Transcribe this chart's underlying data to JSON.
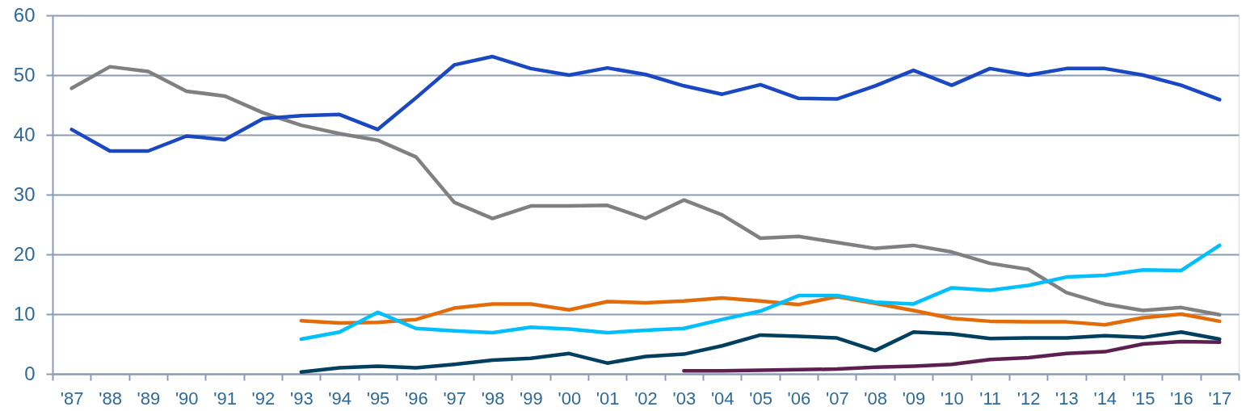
{
  "chart_data": {
    "type": "line",
    "categories": [
      "'87",
      "'88",
      "'89",
      "'90",
      "'91",
      "'92",
      "'93",
      "'94",
      "'95",
      "'96",
      "'97",
      "'98",
      "'99",
      "'00",
      "'01",
      "'02",
      "'03",
      "'04",
      "'05",
      "'06",
      "'07",
      "'08",
      "'09",
      "'10",
      "'11",
      "'12",
      "'13",
      "'14",
      "'15",
      "'16",
      "'17"
    ],
    "series": [
      {
        "color": "#808080",
        "values": [
          47.8,
          51.4,
          50.6,
          47.3,
          46.5,
          43.7,
          41.6,
          40.2,
          39.1,
          36.3,
          28.7,
          26.0,
          28.1,
          28.1,
          28.2,
          26.0,
          29.1,
          26.6,
          22.7,
          23.0,
          22.0,
          21.0,
          21.5,
          20.4,
          18.5,
          17.5,
          13.6,
          11.7,
          10.6,
          11.1,
          9.9
        ]
      },
      {
        "color": "#1a47c2",
        "values": [
          40.9,
          37.3,
          37.3,
          39.8,
          39.2,
          42.7,
          43.2,
          43.4,
          40.9,
          46.2,
          51.7,
          53.1,
          51.1,
          50.0,
          51.2,
          50.1,
          48.2,
          46.8,
          48.4,
          46.1,
          46.0,
          48.2,
          50.8,
          48.3,
          51.1,
          50.0,
          51.1,
          51.1,
          50.0,
          48.3,
          45.9
        ]
      },
      {
        "color": "#e36c09",
        "values": [
          null,
          null,
          null,
          null,
          null,
          null,
          8.9,
          8.5,
          8.6,
          9.1,
          11.0,
          11.7,
          11.7,
          10.7,
          12.1,
          11.9,
          12.2,
          12.7,
          12.2,
          11.6,
          12.9,
          11.8,
          10.6,
          9.3,
          8.8,
          8.7,
          8.7,
          8.2,
          9.4,
          10.0,
          8.8
        ]
      },
      {
        "color": "#00bfff",
        "values": [
          null,
          null,
          null,
          null,
          null,
          null,
          5.8,
          7.0,
          10.3,
          7.6,
          7.2,
          6.9,
          7.8,
          7.5,
          6.9,
          7.3,
          7.6,
          9.1,
          10.5,
          13.1,
          13.1,
          12.0,
          11.7,
          14.4,
          14.0,
          14.8,
          16.2,
          16.5,
          17.4,
          17.3,
          21.5
        ]
      },
      {
        "color": "#003f5f",
        "values": [
          null,
          null,
          null,
          null,
          null,
          null,
          0.3,
          1.0,
          1.3,
          1.0,
          1.6,
          2.3,
          2.6,
          3.4,
          1.8,
          2.9,
          3.3,
          4.7,
          6.5,
          6.3,
          6.0,
          3.9,
          7.0,
          6.7,
          5.9,
          6.0,
          6.0,
          6.4,
          6.1,
          7.0,
          5.8
        ]
      },
      {
        "color": "#5c1f50",
        "values": [
          null,
          null,
          null,
          null,
          null,
          null,
          null,
          null,
          null,
          null,
          null,
          null,
          null,
          null,
          null,
          null,
          0.5,
          0.5,
          0.6,
          0.7,
          0.8,
          1.1,
          1.3,
          1.6,
          2.4,
          2.7,
          3.4,
          3.7,
          5.0,
          5.4,
          5.3
        ]
      }
    ],
    "ylim": [
      0,
      60
    ],
    "yticks": [
      0,
      10,
      20,
      30,
      40,
      50,
      60
    ],
    "grid": "y",
    "line_style": "solid"
  }
}
